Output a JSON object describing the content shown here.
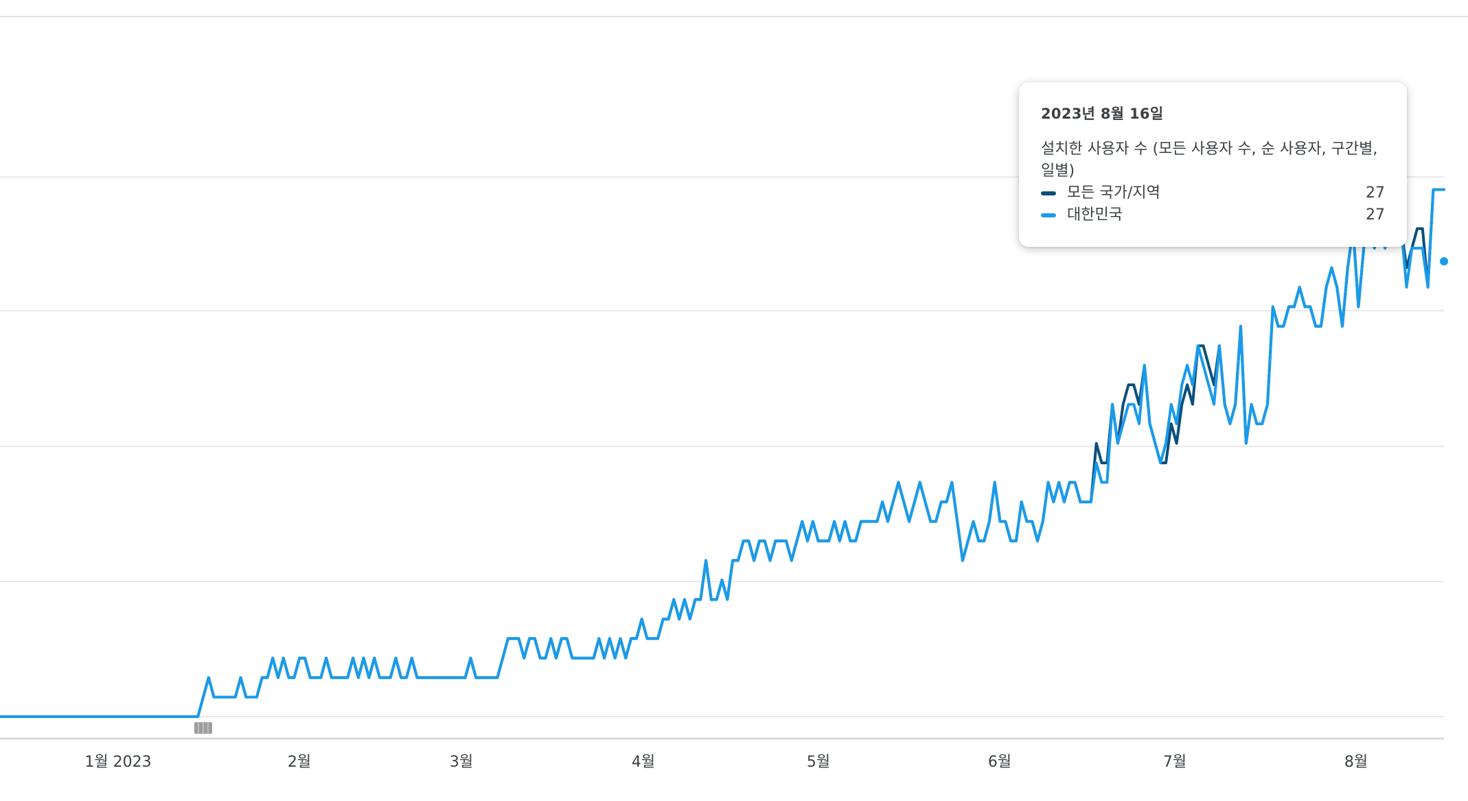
{
  "chart_data": {
    "type": "line",
    "x_axis_labels": [
      "1월 2023",
      "2월",
      "3월",
      "4월",
      "5월",
      "6월",
      "7월",
      "8월"
    ],
    "ylim": [
      0,
      28
    ],
    "grid": true,
    "series": [
      {
        "name": "모든 국가/지역",
        "color": "#0b4f7c",
        "values": [
          0,
          0,
          0,
          0,
          0,
          0,
          0,
          0,
          0,
          0,
          0,
          0,
          0,
          0,
          0,
          0,
          0,
          0,
          0,
          0,
          0,
          0,
          0,
          0,
          0,
          0,
          0,
          0,
          0,
          0,
          0,
          0,
          0,
          0,
          0,
          0,
          0,
          0,
          1,
          2,
          1,
          1,
          1,
          1,
          1,
          2,
          1,
          1,
          1,
          2,
          2,
          3,
          2,
          3,
          2,
          2,
          3,
          3,
          2,
          2,
          2,
          3,
          2,
          2,
          2,
          2,
          3,
          2,
          3,
          2,
          3,
          2,
          2,
          2,
          3,
          2,
          2,
          3,
          2,
          2,
          2,
          2,
          2,
          2,
          2,
          2,
          2,
          2,
          3,
          2,
          2,
          2,
          2,
          2,
          3,
          4,
          4,
          4,
          3,
          4,
          4,
          3,
          3,
          4,
          3,
          4,
          4,
          3,
          3,
          3,
          3,
          3,
          4,
          3,
          4,
          3,
          4,
          3,
          4,
          4,
          5,
          4,
          4,
          4,
          5,
          5,
          6,
          5,
          6,
          5,
          6,
          6,
          8,
          6,
          6,
          7,
          6,
          8,
          8,
          9,
          9,
          8,
          9,
          9,
          8,
          9,
          9,
          9,
          8,
          9,
          10,
          9,
          10,
          9,
          9,
          9,
          10,
          9,
          10,
          9,
          9,
          10,
          10,
          10,
          10,
          11,
          10,
          11,
          12,
          11,
          10,
          11,
          12,
          11,
          10,
          10,
          11,
          11,
          12,
          10,
          8,
          9,
          10,
          9,
          9,
          10,
          12,
          10,
          10,
          9,
          9,
          11,
          10,
          10,
          9,
          10,
          12,
          11,
          12,
          11,
          12,
          12,
          11,
          11,
          11,
          14,
          13,
          13,
          16,
          14,
          16,
          17,
          17,
          16,
          18,
          15,
          14,
          13,
          13,
          15,
          14,
          16,
          17,
          16,
          19,
          19,
          18,
          17,
          19,
          16,
          15,
          16,
          20,
          14,
          16,
          15,
          15,
          16,
          21,
          20,
          20,
          21,
          21,
          22,
          21,
          21,
          20,
          20,
          22,
          23,
          22,
          20,
          23,
          25,
          21,
          24,
          26,
          24,
          25,
          24,
          25,
          26,
          25,
          23,
          24,
          25,
          25,
          22,
          27,
          27,
          27
        ]
      },
      {
        "name": "대한민국",
        "color": "#1a9bea",
        "values": [
          0,
          0,
          0,
          0,
          0,
          0,
          0,
          0,
          0,
          0,
          0,
          0,
          0,
          0,
          0,
          0,
          0,
          0,
          0,
          0,
          0,
          0,
          0,
          0,
          0,
          0,
          0,
          0,
          0,
          0,
          0,
          0,
          0,
          0,
          0,
          0,
          0,
          0,
          1,
          2,
          1,
          1,
          1,
          1,
          1,
          2,
          1,
          1,
          1,
          2,
          2,
          3,
          2,
          3,
          2,
          2,
          3,
          3,
          2,
          2,
          2,
          3,
          2,
          2,
          2,
          2,
          3,
          2,
          3,
          2,
          3,
          2,
          2,
          2,
          3,
          2,
          2,
          3,
          2,
          2,
          2,
          2,
          2,
          2,
          2,
          2,
          2,
          2,
          3,
          2,
          2,
          2,
          2,
          2,
          3,
          4,
          4,
          4,
          3,
          4,
          4,
          3,
          3,
          4,
          3,
          4,
          4,
          3,
          3,
          3,
          3,
          3,
          4,
          3,
          4,
          3,
          4,
          3,
          4,
          4,
          5,
          4,
          4,
          4,
          5,
          5,
          6,
          5,
          6,
          5,
          6,
          6,
          8,
          6,
          6,
          7,
          6,
          8,
          8,
          9,
          9,
          8,
          9,
          9,
          8,
          9,
          9,
          9,
          8,
          9,
          10,
          9,
          10,
          9,
          9,
          9,
          10,
          9,
          10,
          9,
          9,
          10,
          10,
          10,
          10,
          11,
          10,
          11,
          12,
          11,
          10,
          11,
          12,
          11,
          10,
          10,
          11,
          11,
          12,
          10,
          8,
          9,
          10,
          9,
          9,
          10,
          12,
          10,
          10,
          9,
          9,
          11,
          10,
          10,
          9,
          10,
          12,
          11,
          12,
          11,
          12,
          12,
          11,
          11,
          11,
          13,
          12,
          12,
          16,
          14,
          15,
          16,
          16,
          15,
          18,
          15,
          14,
          13,
          14,
          16,
          15,
          17,
          18,
          17,
          19,
          18,
          17,
          16,
          19,
          16,
          15,
          16,
          20,
          14,
          16,
          15,
          15,
          16,
          21,
          20,
          20,
          21,
          21,
          22,
          21,
          21,
          20,
          20,
          22,
          23,
          22,
          20,
          23,
          25,
          21,
          24,
          26,
          24,
          25,
          24,
          25,
          26,
          25,
          22,
          24,
          24,
          24,
          22,
          27,
          27,
          27
        ]
      }
    ]
  },
  "tooltip": {
    "date": "2023년 8월 16일",
    "metric": "설치한 사용자 수 (모든 사용자 수, 순 사용자, 구간별, 일별)",
    "rows": [
      {
        "name": "모든 국가/지역",
        "value": "27",
        "color": "#0b4f7c"
      },
      {
        "name": "대한민국",
        "value": "27",
        "color": "#1a9bea"
      }
    ]
  }
}
